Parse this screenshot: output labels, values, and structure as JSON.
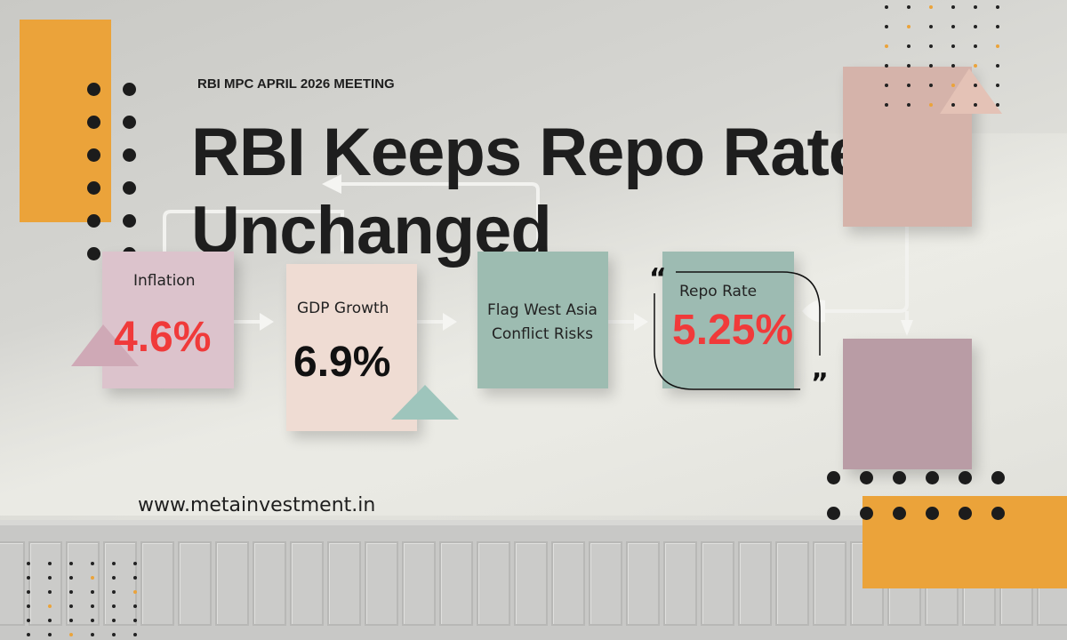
{
  "header": {
    "subtitle": "RBI MPC APRIL 2026 MEETING",
    "title_line1": "RBI Keeps Repo Rates",
    "title_line2": "Unchanged"
  },
  "cards": [
    {
      "label": "Inflation",
      "value": "4.6%",
      "color": "#dcc3cc",
      "value_color": "#f03a3a"
    },
    {
      "label": "GDP Growth",
      "value": "6.9%",
      "color": "#efdcd3",
      "value_color": "#111111"
    },
    {
      "label": "Flag West Asia Conflict Risks",
      "color": "#9dbcb1"
    },
    {
      "label": "Repo Rate",
      "value": "5.25%",
      "color": "#9dbbb2",
      "value_color": "#f03a3a"
    }
  ],
  "quote_open": "“",
  "quote_close": "”",
  "footer": {
    "website": "www.metainvestment.in"
  },
  "colors": {
    "accent": "#eba33a",
    "dots": "#1c1c1c"
  }
}
